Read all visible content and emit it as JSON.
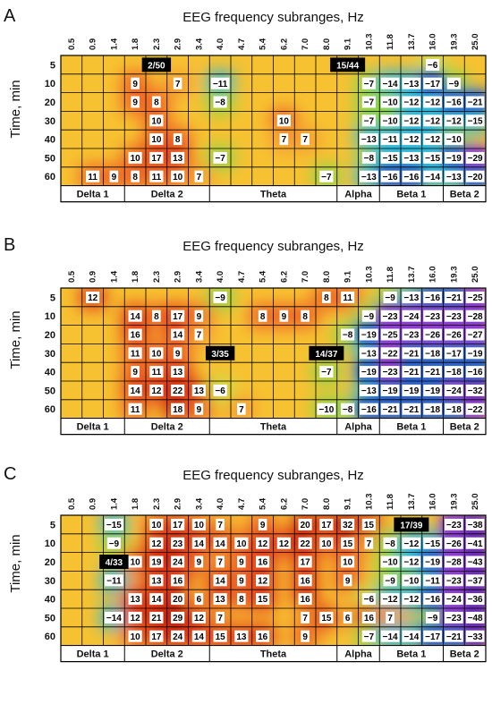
{
  "chart_data": [
    {
      "type": "heatmap",
      "panel": "A",
      "title": "EEG frequency subranges, Hz",
      "ylabel": "Time, min",
      "x": [
        "0.5",
        "0.9",
        "1.4",
        "1.8",
        "2.3",
        "2.9",
        "3.4",
        "4.0",
        "4.7",
        "5.4",
        "6.2",
        "7.0",
        "8.0",
        "9.1",
        "10.3",
        "11.8",
        "13.7",
        "16.0",
        "19.3",
        "25.0"
      ],
      "y": [
        "5",
        "10",
        "20",
        "30",
        "40",
        "50",
        "60"
      ],
      "bands": [
        "Delta 1",
        "Delta 2",
        "Theta",
        "Alpha",
        "Beta 1",
        "Beta 2"
      ],
      "highlights": [
        {
          "label": "2/50",
          "row": 0,
          "col": 4
        },
        {
          "label": "15/44",
          "row": 0,
          "col": 13
        }
      ],
      "values": [
        [
          null,
          null,
          null,
          null,
          null,
          null,
          null,
          null,
          null,
          null,
          null,
          null,
          null,
          null,
          null,
          null,
          null,
          -6,
          null,
          null
        ],
        [
          null,
          null,
          null,
          9,
          null,
          7,
          null,
          -11,
          null,
          null,
          null,
          null,
          null,
          null,
          -7,
          -14,
          -13,
          -17,
          -9,
          null
        ],
        [
          null,
          null,
          null,
          9,
          8,
          null,
          null,
          -8,
          null,
          null,
          null,
          null,
          null,
          null,
          -7,
          -10,
          -12,
          -12,
          -16,
          -21
        ],
        [
          null,
          null,
          null,
          null,
          10,
          null,
          null,
          null,
          null,
          null,
          10,
          null,
          null,
          null,
          -7,
          -10,
          -12,
          -12,
          -12,
          -15
        ],
        [
          null,
          null,
          null,
          null,
          10,
          8,
          null,
          null,
          null,
          null,
          7,
          7,
          null,
          null,
          -13,
          -11,
          -12,
          -12,
          -10,
          null
        ],
        [
          null,
          null,
          null,
          10,
          17,
          13,
          null,
          -7,
          null,
          null,
          null,
          null,
          null,
          null,
          -8,
          -15,
          -13,
          -15,
          -19,
          -29
        ],
        [
          null,
          11,
          9,
          8,
          11,
          10,
          7,
          null,
          null,
          null,
          null,
          null,
          -7,
          null,
          -13,
          -16,
          -16,
          -14,
          -13,
          -20
        ]
      ]
    },
    {
      "type": "heatmap",
      "panel": "B",
      "title": "EEG frequency subranges, Hz",
      "ylabel": "Time, min",
      "x": [
        "0.5",
        "0.9",
        "1.4",
        "1.8",
        "2.3",
        "2.9",
        "3.4",
        "4.0",
        "4.7",
        "5.4",
        "6.2",
        "7.0",
        "8.0",
        "9.1",
        "10.3",
        "11.8",
        "13.7",
        "16.0",
        "19.3",
        "25.0"
      ],
      "y": [
        "5",
        "10",
        "20",
        "30",
        "40",
        "50",
        "60"
      ],
      "bands": [
        "Delta 1",
        "Delta 2",
        "Theta",
        "Alpha",
        "Beta 1",
        "Beta 2"
      ],
      "highlights": [
        {
          "label": "3/35",
          "row": 3,
          "col": 7
        },
        {
          "label": "14/37",
          "row": 3,
          "col": 12
        }
      ],
      "values": [
        [
          null,
          12,
          null,
          null,
          null,
          null,
          null,
          -9,
          null,
          null,
          null,
          null,
          8,
          11,
          null,
          -9,
          -13,
          -16,
          -21,
          -25
        ],
        [
          null,
          null,
          null,
          14,
          8,
          17,
          9,
          null,
          null,
          8,
          9,
          8,
          null,
          null,
          -9,
          -23,
          -24,
          -23,
          -23,
          -28
        ],
        [
          null,
          null,
          null,
          16,
          null,
          14,
          7,
          null,
          null,
          null,
          null,
          null,
          null,
          -8,
          -19,
          -25,
          -23,
          -26,
          -26,
          -27
        ],
        [
          null,
          null,
          null,
          11,
          10,
          9,
          null,
          null,
          null,
          null,
          null,
          null,
          null,
          null,
          -13,
          -22,
          -21,
          -18,
          -17,
          -19
        ],
        [
          null,
          null,
          null,
          9,
          11,
          13,
          null,
          null,
          null,
          null,
          null,
          null,
          -7,
          null,
          -19,
          -23,
          -21,
          -21,
          -18,
          -16
        ],
        [
          null,
          null,
          null,
          14,
          12,
          22,
          13,
          -6,
          null,
          null,
          null,
          null,
          null,
          null,
          -13,
          -19,
          -19,
          -19,
          -24,
          -32
        ],
        [
          null,
          null,
          null,
          11,
          null,
          18,
          9,
          null,
          7,
          null,
          null,
          null,
          -10,
          -8,
          -16,
          -21,
          -21,
          -18,
          -18,
          -22
        ]
      ]
    },
    {
      "type": "heatmap",
      "panel": "C",
      "title": "EEG frequency subranges, Hz",
      "ylabel": "Time, min",
      "x": [
        "0.5",
        "0.9",
        "1.4",
        "1.8",
        "2.3",
        "2.9",
        "3.4",
        "4.0",
        "4.7",
        "5.4",
        "6.2",
        "7.0",
        "8.0",
        "9.1",
        "10.3",
        "11.8",
        "13.7",
        "16.0",
        "19.3",
        "25.0"
      ],
      "y": [
        "5",
        "10",
        "20",
        "30",
        "40",
        "50",
        "60"
      ],
      "bands": [
        "Delta 1",
        "Delta 2",
        "Theta",
        "Alpha",
        "Beta 1",
        "Beta 2"
      ],
      "highlights": [
        {
          "label": "4/33",
          "row": 2,
          "col": 2
        },
        {
          "label": "17/39",
          "row": 0,
          "col": 16
        }
      ],
      "values": [
        [
          null,
          null,
          -15,
          null,
          10,
          17,
          10,
          7,
          null,
          9,
          null,
          20,
          17,
          32,
          15,
          null,
          null,
          null,
          -23,
          -38
        ],
        [
          null,
          null,
          -9,
          null,
          12,
          23,
          14,
          14,
          10,
          12,
          12,
          22,
          10,
          15,
          7,
          -8,
          -12,
          -15,
          -26,
          -41
        ],
        [
          null,
          null,
          null,
          10,
          19,
          24,
          9,
          7,
          9,
          16,
          null,
          17,
          null,
          10,
          null,
          -10,
          -12,
          -19,
          -28,
          -43
        ],
        [
          null,
          null,
          -11,
          null,
          13,
          16,
          null,
          14,
          9,
          12,
          null,
          16,
          null,
          9,
          null,
          -9,
          -10,
          -11,
          -23,
          -37
        ],
        [
          null,
          null,
          null,
          13,
          14,
          20,
          6,
          13,
          8,
          15,
          null,
          16,
          null,
          null,
          -6,
          -12,
          -12,
          -16,
          -24,
          -36
        ],
        [
          null,
          null,
          -14,
          12,
          21,
          29,
          12,
          7,
          null,
          null,
          null,
          7,
          15,
          6,
          16,
          7,
          null,
          -9,
          -23,
          -48
        ],
        [
          null,
          null,
          null,
          10,
          17,
          24,
          14,
          15,
          13,
          16,
          null,
          9,
          null,
          null,
          -7,
          -14,
          -14,
          -17,
          -21,
          -33
        ]
      ]
    }
  ]
}
